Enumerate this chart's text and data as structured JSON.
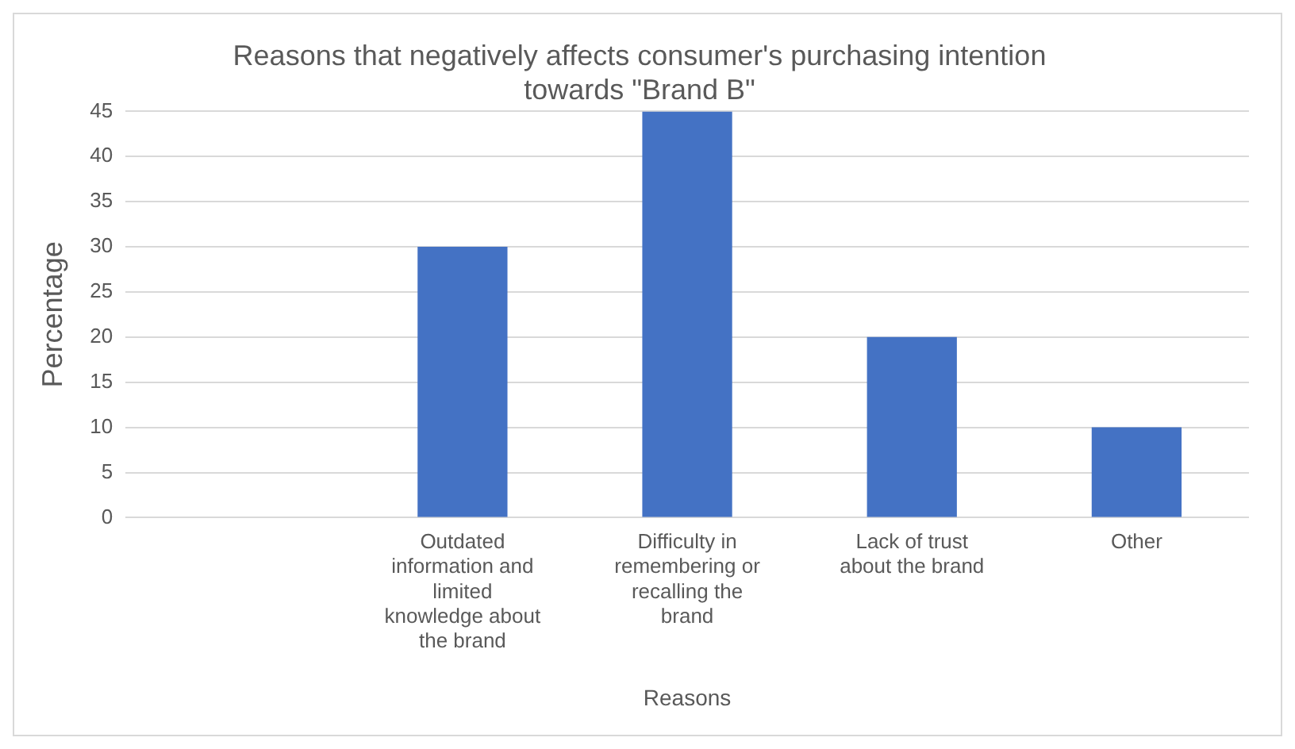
{
  "chart_data": {
    "type": "bar",
    "title": "Reasons that negatively affects consumer's purchasing intention towards \"Brand B\"",
    "xlabel": "Reasons",
    "ylabel": "Percentage",
    "categories": [
      null,
      "Outdated information and limited knowledge about the brand",
      "Difficulty in remembering or recalling the brand",
      "Lack of trust about the brand",
      "Other"
    ],
    "values": [
      null,
      30,
      45,
      20,
      10
    ],
    "color": "#4472c4",
    "ylim": [
      0,
      45
    ],
    "yticks": [
      0,
      5,
      10,
      15,
      20,
      25,
      30,
      35,
      40,
      45
    ],
    "grid": "y",
    "legend": false
  }
}
